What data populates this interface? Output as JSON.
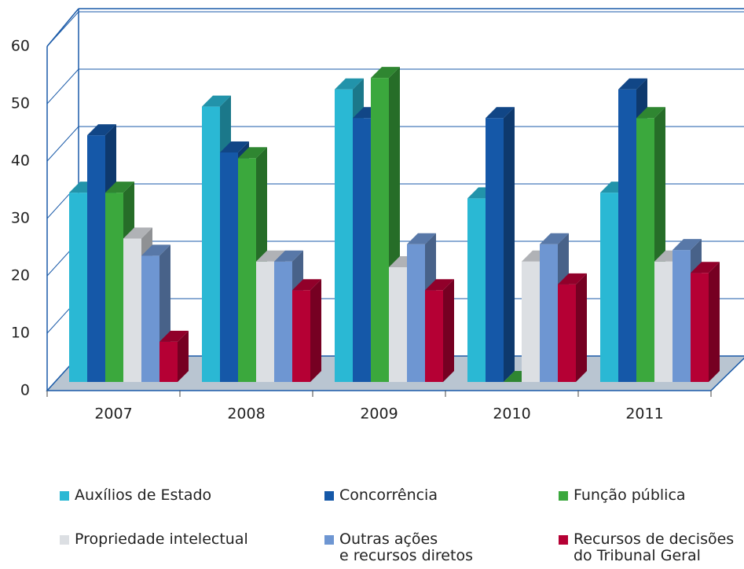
{
  "chart_data": {
    "type": "bar3d",
    "categories": [
      "2007",
      "2008",
      "2009",
      "2010",
      "2011"
    ],
    "series": [
      {
        "name": "Auxílios de Estado",
        "color": "#2ab8d4",
        "values": [
          33,
          48,
          51,
          32,
          33
        ]
      },
      {
        "name": "Concorrência",
        "color": "#1558a8",
        "values": [
          43,
          40,
          46,
          46,
          51
        ]
      },
      {
        "name": "Função pública",
        "color": "#3ba83d",
        "values": [
          33,
          39,
          53,
          0,
          46
        ]
      },
      {
        "name": "Propriedade intelectual",
        "color": "#dcdfe3",
        "values": [
          25,
          21,
          20,
          21,
          21
        ]
      },
      {
        "name": "Outras ações\ne recursos diretos",
        "color": "#6e96d2",
        "values": [
          22,
          21,
          24,
          24,
          23
        ]
      },
      {
        "name": "Recursos de decisões\ndo Tribunal Geral",
        "color": "#b50034",
        "values": [
          7,
          16,
          16,
          17,
          19
        ]
      }
    ],
    "ylim": [
      0,
      60
    ],
    "yticks": [
      0,
      10,
      20,
      30,
      40,
      50,
      60
    ],
    "grid": true,
    "legend": "bottom"
  }
}
